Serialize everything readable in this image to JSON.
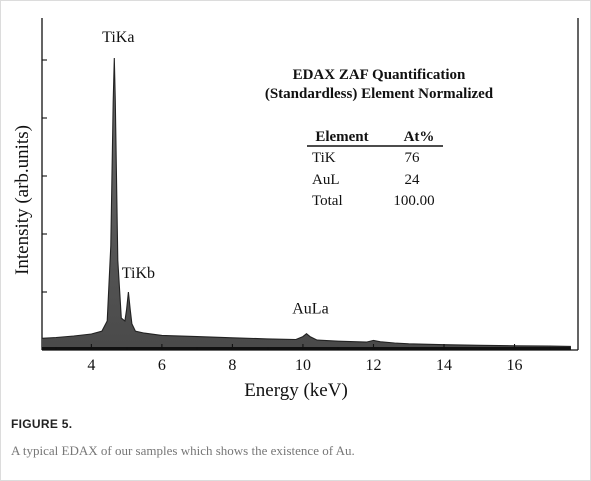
{
  "figure": {
    "label": "FIGURE 5.",
    "caption": "A typical EDAX of our samples which shows the existence of Au."
  },
  "chart_data": {
    "type": "line",
    "title": "",
    "xlabel": "Energy (keV)",
    "ylabel": "Intensity (arb.units)",
    "xlim": [
      2.6,
      17.8
    ],
    "ylim": [
      0,
      100
    ],
    "x_ticks": [
      4,
      6,
      8,
      10,
      12,
      14,
      16
    ],
    "y_ticks_labeled": false,
    "grid": false,
    "series": [
      {
        "x": [
          2.6,
          3.0,
          3.5,
          4.0,
          4.3,
          4.45,
          4.55,
          4.62,
          4.65,
          4.68,
          4.75,
          4.85,
          4.95,
          5.0,
          5.05,
          5.1,
          5.15,
          5.25,
          5.5,
          6.0,
          7.0,
          8.0,
          9.0,
          9.8,
          10.0,
          10.1,
          10.2,
          10.4,
          11.0,
          11.8,
          12.0,
          12.2,
          12.6,
          13.0,
          14.0,
          15.0,
          16.0,
          17.0,
          17.6
        ],
        "y": [
          3.0,
          3.3,
          3.8,
          4.5,
          5.5,
          9,
          35,
          85,
          100,
          85,
          30,
          10,
          9,
          13,
          19,
          13,
          8,
          5.5,
          4.8,
          4.0,
          3.6,
          3.2,
          2.8,
          2.6,
          3.6,
          4.6,
          3.6,
          2.4,
          2.0,
          1.7,
          2.3,
          1.8,
          1.4,
          1.1,
          0.8,
          0.6,
          0.4,
          0.3,
          0.2
        ]
      }
    ],
    "peak_labels": [
      {
        "text": "TiKa",
        "x": 4.65
      },
      {
        "text": "TiKb",
        "x": 5.05
      },
      {
        "text": "AuLa",
        "x": 10.1
      }
    ],
    "inset": {
      "title_line1": "EDAX ZAF Quantification",
      "title_line2": "(Standardless) Element Normalized",
      "headers": [
        "Element",
        "At%"
      ],
      "rows": [
        [
          "TiK",
          "76"
        ],
        [
          "AuL",
          "24"
        ],
        [
          "Total",
          "100.00"
        ]
      ]
    }
  }
}
